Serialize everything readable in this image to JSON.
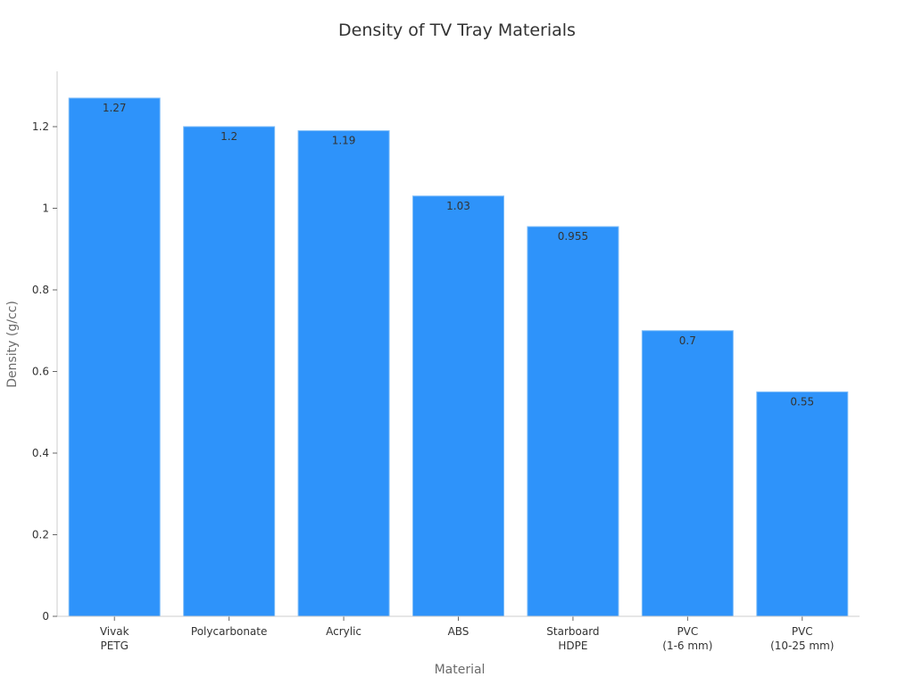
{
  "chart_data": {
    "type": "bar",
    "title": "Density of TV Tray Materials",
    "xlabel": "Material",
    "ylabel": "Density (g/cc)",
    "categories": [
      "Vivak\nPETG",
      "Polycarbonate",
      "Acrylic",
      "ABS",
      "Starboard\nHDPE",
      "PVC\n(1-6 mm)",
      "PVC\n(10-25 mm)"
    ],
    "values": [
      1.27,
      1.2,
      1.19,
      1.03,
      0.955,
      0.7,
      0.55
    ],
    "value_labels": [
      "1.27",
      "1.2",
      "1.19",
      "1.03",
      "0.955",
      "0.7",
      "0.55"
    ],
    "yticks": [
      0,
      0.2,
      0.4,
      0.6,
      0.8,
      1,
      1.2
    ],
    "ytick_labels": [
      "0",
      "0.2",
      "0.4",
      "0.6",
      "0.8",
      "1",
      "1.2"
    ],
    "ylim": [
      0,
      1.336
    ],
    "grid": false,
    "legend": null,
    "colors": {
      "bar": "#2e93fa",
      "bar_edge": "#7fbdf8",
      "axis": "#cccccc",
      "text": "#333333",
      "axis_label": "#6b6b6b"
    }
  }
}
